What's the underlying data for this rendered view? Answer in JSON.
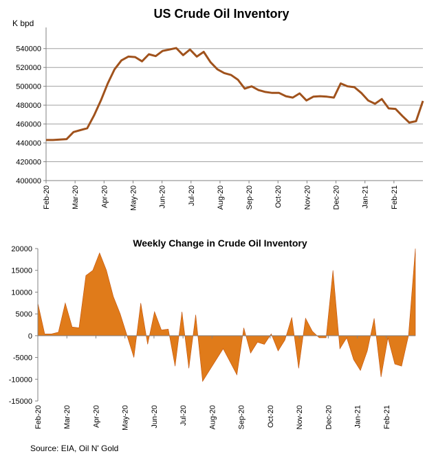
{
  "source_note": "Source: EIA, Oil N' Gold",
  "colors": {
    "line": "#a0521c",
    "area": "#e07b1a",
    "area_edge": "#c0500a",
    "grid": "#a0a0a0",
    "axis": "#808080"
  },
  "chart_data": [
    {
      "type": "line",
      "title": "US Crude Oil Inventory",
      "ylabel": "K bpd",
      "xlabel": "",
      "ylim": [
        400000,
        550000
      ],
      "yticks": [
        400000,
        420000,
        440000,
        460000,
        480000,
        500000,
        520000,
        540000
      ],
      "ytick_labels": [
        "400000",
        "420000",
        "440000",
        "460000",
        "480000",
        "500000",
        "520000",
        "540000"
      ],
      "grid": true,
      "xtick_labels": [
        "Feb-20",
        "Mar-20",
        "Apr-20",
        "May-20",
        "Jun-20",
        "Jul-20",
        "Aug-20",
        "Sep-20",
        "Oct-20",
        "Nov-20",
        "Dec-20",
        "Jan-21",
        "Feb-21"
      ],
      "series": [
        {
          "values": [
            443000,
            443000,
            443500,
            444000,
            451500,
            453500,
            455500,
            469000,
            485000,
            503000,
            518000,
            527500,
            531500,
            531000,
            526500,
            534000,
            532000,
            537500,
            539000,
            540500,
            533000,
            539000,
            531500,
            536500,
            525500,
            518000,
            514000,
            512000,
            507000,
            497500,
            500000,
            496000,
            494000,
            493000,
            493000,
            489500,
            488000,
            492500,
            485000,
            489000,
            489500,
            489000,
            488000,
            503000,
            500000,
            499000,
            493000,
            485000,
            481500,
            486500,
            476500,
            476000,
            468500,
            461500,
            463000,
            484500
          ]
        }
      ]
    },
    {
      "type": "area",
      "title": "Weekly Change in Crude Oil Inventory",
      "xlabel": "",
      "ylabel": "",
      "ylim": [
        -15000,
        20000
      ],
      "yticks": [
        -15000,
        -10000,
        -5000,
        0,
        5000,
        10000,
        15000,
        20000
      ],
      "ytick_labels": [
        "-15000",
        "-10000",
        "-5000",
        "0",
        "5000",
        "10000",
        "15000",
        "20000"
      ],
      "grid": false,
      "xtick_labels": [
        "Feb-20",
        "Mar-20",
        "Apr-20",
        "May-20",
        "Jun-20",
        "Jul-20",
        "Aug-20",
        "Sep-20",
        "Oct-20",
        "Nov-20",
        "Dec-20",
        "Jan-21",
        "Feb-21"
      ],
      "series": [
        {
          "values": [
            7500,
            400,
            400,
            800,
            7500,
            2000,
            1800,
            13800,
            15000,
            19000,
            15000,
            9000,
            5000,
            0,
            -5000,
            7500,
            -2000,
            5500,
            1300,
            1500,
            -7000,
            5500,
            -7500,
            4800,
            -10500,
            -8000,
            -5500,
            -3000,
            -6000,
            -9000,
            1800,
            -4000,
            -1500,
            -2000,
            400,
            -3500,
            -1000,
            4200,
            -7500,
            4000,
            1000,
            -500,
            -500,
            15000,
            -3000,
            -500,
            -5500,
            -8000,
            -3500,
            4000,
            -9500,
            -500,
            -6500,
            -7000,
            0,
            20000
          ]
        }
      ]
    }
  ]
}
